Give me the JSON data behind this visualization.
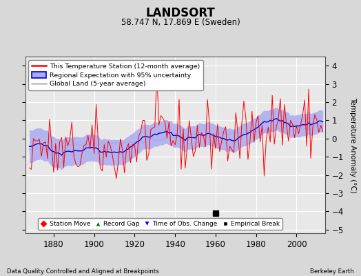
{
  "title": "LANDSORT",
  "subtitle": "58.747 N, 17.869 E (Sweden)",
  "ylabel": "Temperature Anomaly (°C)",
  "xlabel_left": "Data Quality Controlled and Aligned at Breakpoints",
  "xlabel_right": "Berkeley Earth",
  "ylim": [
    -5.2,
    4.5
  ],
  "xlim": [
    1866,
    2014
  ],
  "yticks": [
    -5,
    -4,
    -3,
    -2,
    -1,
    0,
    1,
    2,
    3,
    4
  ],
  "xticks": [
    1880,
    1900,
    1920,
    1940,
    1960,
    1980,
    2000
  ],
  "bg_color": "#d8d8d8",
  "plot_bg_color": "#e8e8e8",
  "red_color": "#ff0000",
  "blue_color": "#0000cc",
  "blue_fill_color": "#aaaaee",
  "gray_color": "#c0c0c0",
  "empirical_break_year": 1960,
  "seed": 42
}
